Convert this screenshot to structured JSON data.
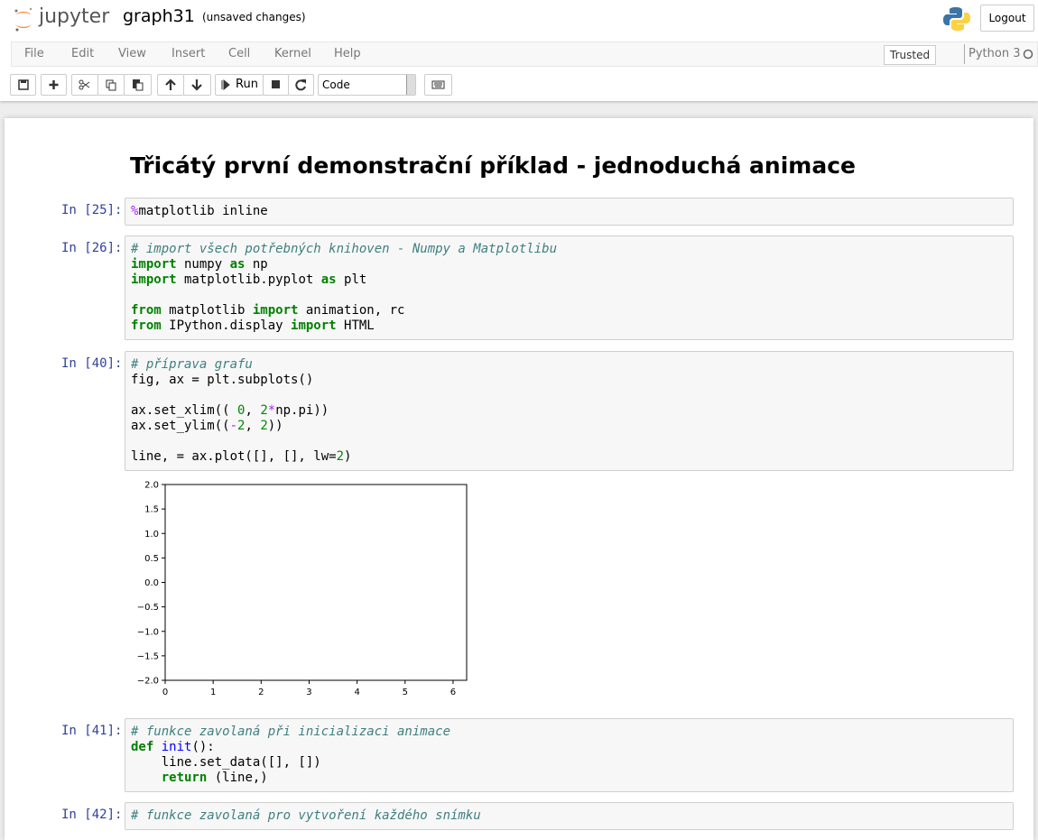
{
  "header": {
    "logo": "jupyter",
    "notebook_name": "graph31",
    "status": "(unsaved changes)",
    "logout": "Logout"
  },
  "menu": {
    "items": [
      "File",
      "Edit",
      "View",
      "Insert",
      "Cell",
      "Kernel",
      "Help"
    ],
    "trusted": "Trusted",
    "kernel": "Python 3"
  },
  "toolbar": {
    "run": "Run",
    "cell_type": "Code"
  },
  "notebook": {
    "heading": "Třicátý první demonstrační příklad - jednoduchá animace",
    "cells": [
      {
        "prompt": "In [25]:",
        "lines": [
          [
            {
              "t": "%",
              "k": "o"
            },
            {
              "t": "matplotlib inline"
            }
          ]
        ]
      },
      {
        "prompt": "In [26]:",
        "lines": [
          [
            {
              "t": "# import všech potřebných knihoven - Numpy a Matplotlibu",
              "k": "c"
            }
          ],
          [
            {
              "t": "import",
              "k": "kw"
            },
            {
              "t": " numpy "
            },
            {
              "t": "as",
              "k": "kw"
            },
            {
              "t": " np"
            }
          ],
          [
            {
              "t": "import",
              "k": "kw"
            },
            {
              "t": " matplotlib.pyplot "
            },
            {
              "t": "as",
              "k": "kw"
            },
            {
              "t": " plt"
            }
          ],
          [],
          [
            {
              "t": "from",
              "k": "kw"
            },
            {
              "t": " matplotlib "
            },
            {
              "t": "import",
              "k": "kw"
            },
            {
              "t": " animation, rc"
            }
          ],
          [
            {
              "t": "from",
              "k": "kw"
            },
            {
              "t": " IPython.display "
            },
            {
              "t": "import",
              "k": "kw"
            },
            {
              "t": " HTML"
            }
          ]
        ]
      },
      {
        "prompt": "In [40]:",
        "lines": [
          [
            {
              "t": "# příprava grafu",
              "k": "c"
            }
          ],
          [
            {
              "t": "fig, ax = plt.subplots()"
            }
          ],
          [],
          [
            {
              "t": "ax.set_xlim(( "
            },
            {
              "t": "0",
              "k": "n"
            },
            {
              "t": ", "
            },
            {
              "t": "2",
              "k": "n"
            },
            {
              "t": "*",
              "k": "o"
            },
            {
              "t": "np.pi))"
            }
          ],
          [
            {
              "t": "ax.set_ylim(("
            },
            {
              "t": "-",
              "k": "o"
            },
            {
              "t": "2",
              "k": "n"
            },
            {
              "t": ", "
            },
            {
              "t": "2",
              "k": "n"
            },
            {
              "t": "))"
            }
          ],
          [],
          [
            {
              "t": "line, = ax.plot([], [], lw="
            },
            {
              "t": "2",
              "k": "n"
            },
            {
              "t": ")"
            }
          ]
        ],
        "output": {
          "type": "line",
          "xlim": [
            0,
            6.283
          ],
          "ylim": [
            -2,
            2
          ],
          "xticks": [
            0,
            1,
            2,
            3,
            4,
            5,
            6
          ],
          "yticks": [
            {
              "value": 2,
              "label": "2.0"
            },
            {
              "value": 1.5,
              "label": "1.5"
            },
            {
              "value": 1,
              "label": "1.0"
            },
            {
              "value": 0.5,
              "label": "0.5"
            },
            {
              "value": 0,
              "label": "0.0"
            },
            {
              "value": -0.5,
              "label": "−0.5"
            },
            {
              "value": -1,
              "label": "−1.0"
            },
            {
              "value": -1.5,
              "label": "−1.5"
            },
            {
              "value": -2,
              "label": "−2.0"
            }
          ]
        }
      },
      {
        "prompt": "In [41]:",
        "lines": [
          [
            {
              "t": "# funkce zavolaná při inicializaci animace",
              "k": "c"
            }
          ],
          [
            {
              "t": "def",
              "k": "kw"
            },
            {
              "t": " "
            },
            {
              "t": "init",
              "k": "fn"
            },
            {
              "t": "():"
            }
          ],
          [
            {
              "t": "    line.set_data([], [])"
            }
          ],
          [
            {
              "t": "    "
            },
            {
              "t": "return",
              "k": "kw"
            },
            {
              "t": " (line,)"
            }
          ]
        ]
      },
      {
        "prompt": "In [42]:",
        "lines": [
          [
            {
              "t": "# funkce zavolaná pro vytvoření každého snímku",
              "k": "c"
            }
          ]
        ]
      }
    ]
  }
}
